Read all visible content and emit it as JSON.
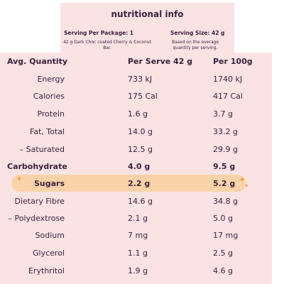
{
  "header": {
    "title": "nutritional info",
    "serving_per_package": "Serving Per Package: 1",
    "serving_size": "Serving Size: 42 g",
    "package_note": "42 g Dark Choc coated Cherry & Coconut Bar.",
    "size_note": "Based on the average quantity per serving."
  },
  "table": {
    "columns": [
      "Avg. Quantity",
      "Per Serve 42 g",
      "Per 100g"
    ],
    "rows": [
      {
        "label": "Energy",
        "per_serve": "733 kJ",
        "per_100g": "1740 kJ"
      },
      {
        "label": "Calories",
        "per_serve": "175 Cal",
        "per_100g": "417 Cal"
      },
      {
        "label": "Protein",
        "per_serve": "1.6 g",
        "per_100g": "3.7 g"
      },
      {
        "label": "Fat, Total",
        "per_serve": "14.0 g",
        "per_100g": "33.2 g"
      },
      {
        "label": "– Saturated",
        "per_serve": "12.5 g",
        "per_100g": "29.9 g"
      },
      {
        "label": "Carbohydrate",
        "per_serve": "4.0 g",
        "per_100g": "9.5 g"
      },
      {
        "label": "Sugars",
        "per_serve": "2.2 g",
        "per_100g": "5.2 g"
      },
      {
        "label": "Dietary Fibre",
        "per_serve": "14.6 g",
        "per_100g": "34.8 g"
      },
      {
        "label": "– Polydextrose",
        "per_serve": "2.1 g",
        "per_100g": "5.0 g"
      },
      {
        "label": "Sodium",
        "per_serve": "7 mg",
        "per_100g": "17 mg"
      },
      {
        "label": "Glycerol",
        "per_serve": "1.1 g",
        "per_100g": "2.5 g"
      },
      {
        "label": "Erythritol",
        "per_serve": "1.9 g",
        "per_100g": "4.6 g"
      }
    ]
  },
  "colors": {
    "panel_bg": "#fbe3e3",
    "highlight": "#fbd3a8",
    "text": "#3a2240",
    "sparkle": "#e9a855"
  },
  "icons": [
    "sparkle-icon"
  ]
}
